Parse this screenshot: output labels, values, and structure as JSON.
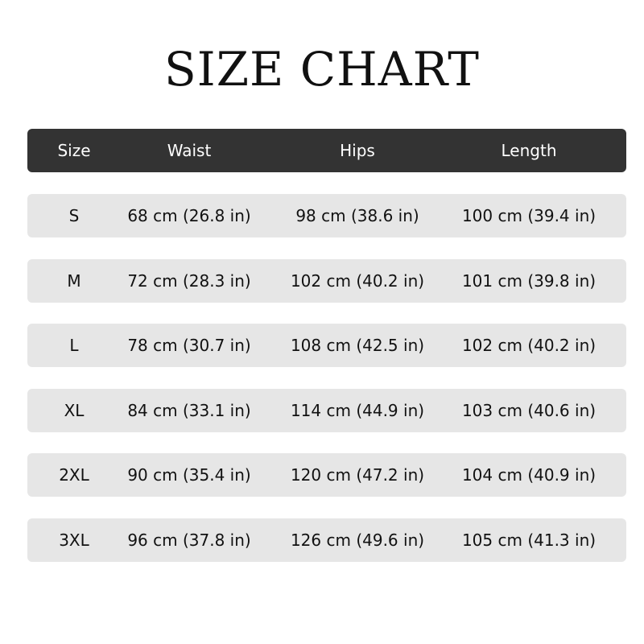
{
  "title": "SIZE CHART",
  "colors": {
    "header_bg": "#333333",
    "row_bg": "#e6e6e6",
    "header_text": "#ffffff",
    "text": "#111111"
  },
  "table": {
    "headers": [
      "Size",
      "Waist",
      "Hips",
      "Length"
    ],
    "rows": [
      [
        "S",
        "68 cm (26.8 in)",
        "98 cm (38.6 in)",
        "100 cm (39.4 in)"
      ],
      [
        "M",
        "72 cm (28.3 in)",
        "102 cm (40.2 in)",
        "101 cm (39.8 in)"
      ],
      [
        "L",
        "78 cm (30.7 in)",
        "108 cm (42.5 in)",
        "102 cm (40.2 in)"
      ],
      [
        "XL",
        "84 cm (33.1 in)",
        "114 cm (44.9 in)",
        "103 cm (40.6 in)"
      ],
      [
        "2XL",
        "90 cm (35.4 in)",
        "120 cm (47.2 in)",
        "104 cm (40.9 in)"
      ],
      [
        "3XL",
        "96 cm (37.8 in)",
        "126 cm (49.6 in)",
        "105 cm (41.3 in)"
      ]
    ]
  }
}
